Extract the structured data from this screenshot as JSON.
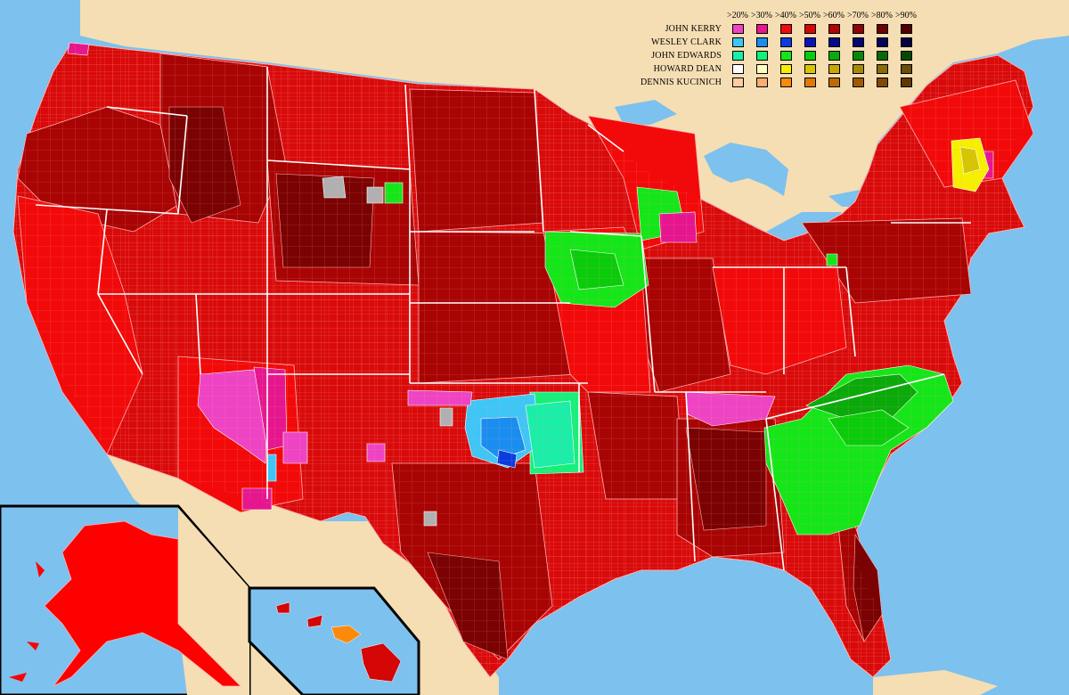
{
  "legend": {
    "thresholds": [
      ">20%",
      ">30%",
      ">40%",
      ">50%",
      ">60%",
      ">70%",
      ">80%",
      ">90%"
    ],
    "candidates": [
      {
        "name": "JOHN KERRY",
        "colors": [
          "#ee44c4",
          "#e6168e",
          "#f00a0a",
          "#d40606",
          "#b20404",
          "#8e0404",
          "#6e0202",
          "#500000"
        ]
      },
      {
        "name": "WESLEY CLARK",
        "colors": [
          "#3ec6f6",
          "#1a8ef0",
          "#0a3ce0",
          "#0a14b4",
          "#080a8c",
          "#060672",
          "#04045a",
          "#020244"
        ]
      },
      {
        "name": "JOHN EDWARDS",
        "colors": [
          "#1aeea8",
          "#16f07a",
          "#14e618",
          "#0acc0a",
          "#0aaa0a",
          "#088808",
          "#066a06",
          "#044a04"
        ]
      },
      {
        "name": "HOWARD DEAN",
        "colors": [
          "#ffffff",
          "#ffffc0",
          "#f6f000",
          "#d6c600",
          "#c6a800",
          "#a88800",
          "#8a6c00",
          "#6a5000"
        ]
      },
      {
        "name": "DENNIS KUCINICH",
        "colors": [
          "#ffcca4",
          "#fcac6e",
          "#fc8a0a",
          "#e07a06",
          "#c06a04",
          "#a05a02",
          "#804a02",
          "#603802"
        ]
      }
    ]
  }
}
